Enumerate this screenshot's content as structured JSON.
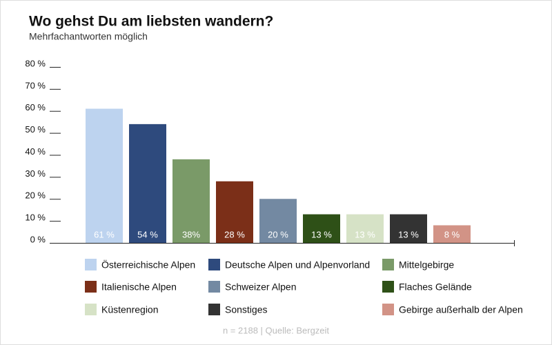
{
  "chart_data": {
    "type": "bar",
    "title": "Wo gehst Du am liebsten wandern?",
    "subtitle": "Mehrfachantworten möglich",
    "note": "n = 2188 | Quelle: Bergzeit",
    "categories": [
      "Österreichische Alpen",
      "Deutsche Alpen und Alpenvorland",
      "Mittelgebirge",
      "Italienische Alpen",
      "Schweizer Alpen",
      "Flaches Gelände",
      "Küstenregion",
      "Sonstiges",
      "Gebirge außerhalb der Alpen"
    ],
    "values": [
      61,
      54,
      38,
      28,
      20,
      13,
      13,
      13,
      8
    ],
    "value_labels": [
      "61 %",
      "54 %",
      "38%",
      "28 %",
      "20 %",
      "13 %",
      "13 %",
      "13 %",
      "8 %"
    ],
    "colors": [
      "#bdd3ef",
      "#2e4a7d",
      "#7a9a68",
      "#7b2f18",
      "#7389a2",
      "#2e5017",
      "#d6e2c6",
      "#333333",
      "#d29386"
    ],
    "ylim": [
      0,
      80
    ],
    "yticks": [
      {
        "value": 0,
        "label": "0 %"
      },
      {
        "value": 10,
        "label": "10 %"
      },
      {
        "value": 20,
        "label": "20 %"
      },
      {
        "value": 30,
        "label": "30 %"
      },
      {
        "value": 40,
        "label": "40 %"
      },
      {
        "value": 50,
        "label": "50 %"
      },
      {
        "value": 60,
        "label": "60 %"
      },
      {
        "value": 70,
        "label": "70 %"
      },
      {
        "value": 80,
        "label": "80 %"
      }
    ],
    "legend": "bottom"
  }
}
